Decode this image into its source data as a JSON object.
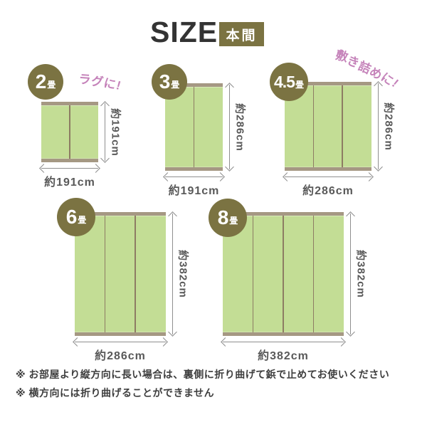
{
  "header": {
    "title": "SIZE",
    "badge": "本間"
  },
  "annotations": {
    "rug": "ラグに!",
    "spread": "敷き詰めに!"
  },
  "sizes": [
    {
      "label_num": "2",
      "label_unit": "畳",
      "width_label": "約191cm",
      "height_label": "約191cm",
      "panels": 2
    },
    {
      "label_num": "3",
      "label_unit": "畳",
      "width_label": "約191cm",
      "height_label": "約286cm",
      "panels": 2
    },
    {
      "label_num": "4.5",
      "label_unit": "畳",
      "width_label": "約286cm",
      "height_label": "約286cm",
      "panels": 3
    },
    {
      "label_num": "6",
      "label_unit": "畳",
      "width_label": "約286cm",
      "height_label": "約382cm",
      "panels": 3
    },
    {
      "label_num": "8",
      "label_unit": "畳",
      "width_label": "約382cm",
      "height_label": "約382cm",
      "panels": 4
    }
  ],
  "notes": [
    "※ お部屋より縦方向に長い場合は、裏側に折り曲げて鋲で止めてお使いください",
    "※ 横方向には折り曲げることができません"
  ],
  "colors": {
    "badge_olive": "#7b7342",
    "mat_green": "#c3dd95",
    "mat_edge": "#a59883",
    "mat_seam": "#8d7c63",
    "accent_pink": "#c583ba",
    "arrow_gray": "#8f8f8f",
    "dim_text": "#595959",
    "note_text": "#3e3e3e",
    "title_text": "#333333"
  }
}
